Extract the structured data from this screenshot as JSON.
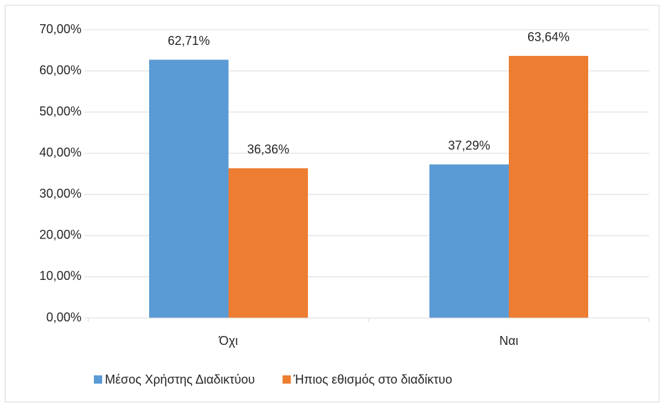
{
  "chart_data": {
    "type": "bar",
    "categories": [
      "Όχι",
      "Ναι"
    ],
    "series": [
      {
        "name": "Μέσος Χρήστης Διαδικτύου",
        "color": "#5b9bd5",
        "values": [
          62.71,
          37.29
        ],
        "value_labels": [
          "62,71%",
          "37,29%"
        ]
      },
      {
        "name": "Ήπιος εθισμός στο διαδίκτυο",
        "color": "#ed7d31",
        "values": [
          36.36,
          63.64
        ],
        "value_labels": [
          "36,36%",
          "63,64%"
        ]
      }
    ],
    "ylim": [
      0,
      70
    ],
    "yticks": [
      {
        "value": 0,
        "label": "0,00%"
      },
      {
        "value": 10,
        "label": "10,00%"
      },
      {
        "value": 20,
        "label": "20,00%"
      },
      {
        "value": 30,
        "label": "30,00%"
      },
      {
        "value": 40,
        "label": "40,00%"
      },
      {
        "value": 50,
        "label": "50,00%"
      },
      {
        "value": 60,
        "label": "60,00%"
      },
      {
        "value": 70,
        "label": "70,00%"
      }
    ],
    "grid": true,
    "legend": "bottom"
  }
}
